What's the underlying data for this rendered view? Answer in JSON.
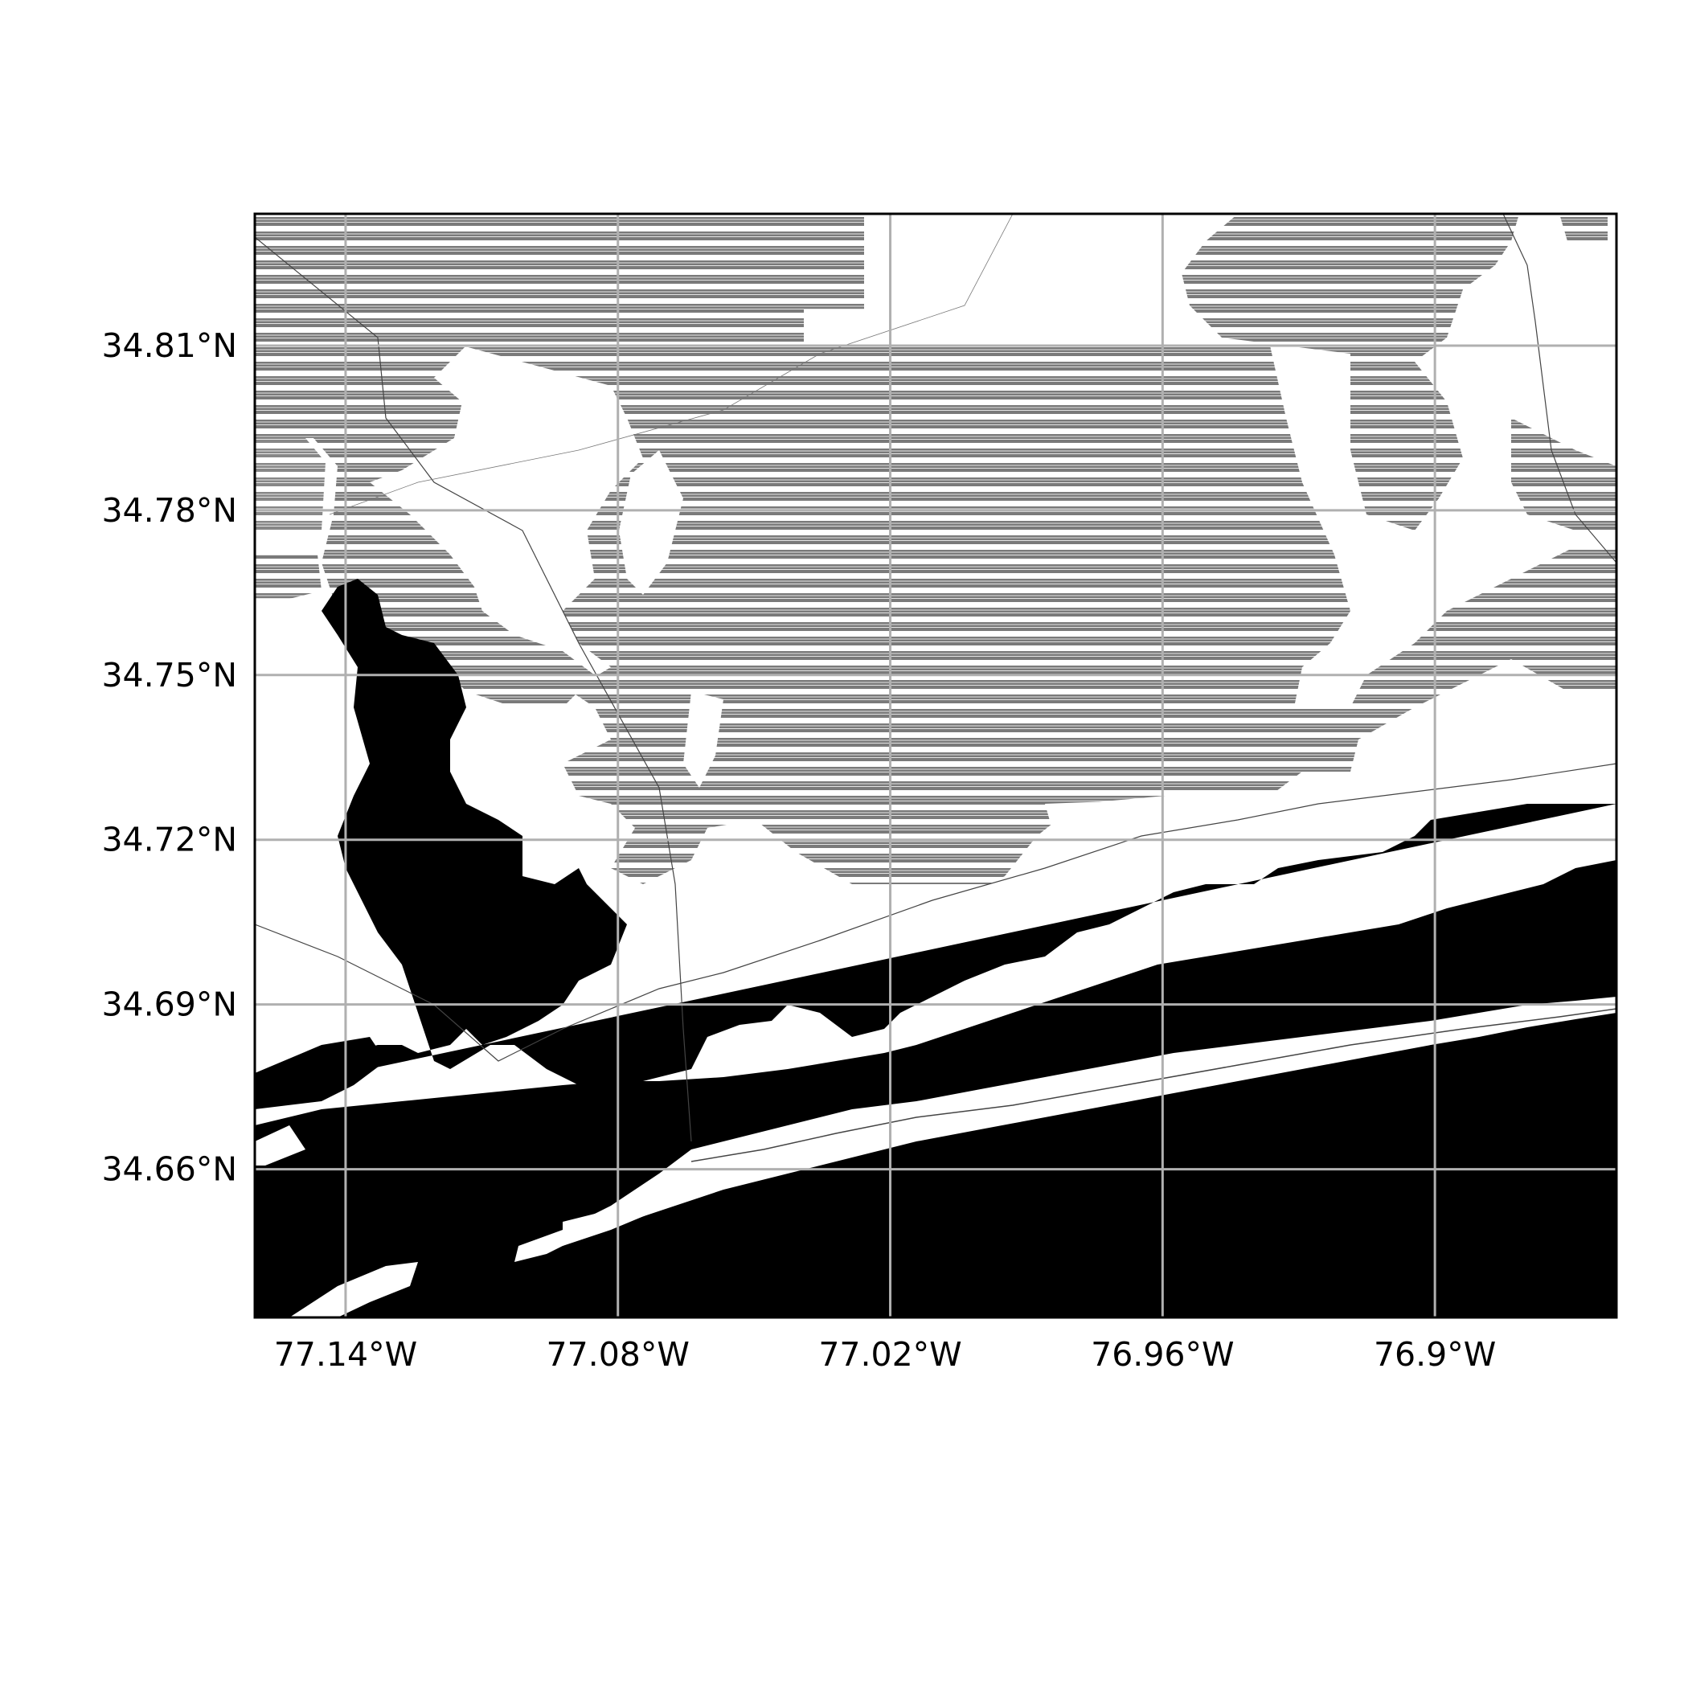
{
  "map": {
    "lon_range": [
      -77.16,
      -76.86
    ],
    "lat_range": [
      34.633,
      34.834
    ],
    "grid": true,
    "colors": {
      "water": "#000000",
      "forest_hatch": "#7a7a7a",
      "land": "#ffffff",
      "gridline": "#b0b0b0",
      "frame": "#000000"
    },
    "x_ticks": [
      {
        "value": -77.14,
        "label": "77.14°W"
      },
      {
        "value": -77.08,
        "label": "77.08°W"
      },
      {
        "value": -77.02,
        "label": "77.02°W"
      },
      {
        "value": -76.96,
        "label": "76.96°W"
      },
      {
        "value": -76.9,
        "label": "76.9°W"
      }
    ],
    "y_ticks": [
      {
        "value": 34.81,
        "label": "34.81°N"
      },
      {
        "value": 34.78,
        "label": "34.78°N"
      },
      {
        "value": 34.75,
        "label": "34.75°N"
      },
      {
        "value": 34.72,
        "label": "34.72°N"
      },
      {
        "value": 34.69,
        "label": "34.69°N"
      },
      {
        "value": 34.66,
        "label": "34.66°N"
      }
    ]
  }
}
